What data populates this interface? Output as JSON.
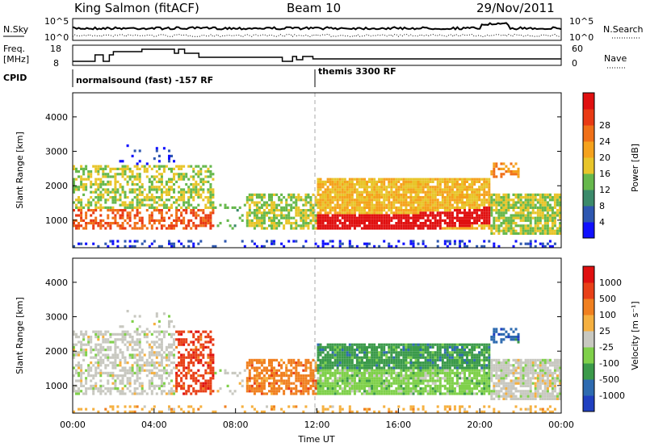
{
  "header": {
    "station": "King Salmon (fitACF)",
    "beam": "Beam 10",
    "date": "29/Nov/2011"
  },
  "summary_panels": {
    "nsky": {
      "label": "N.Sky",
      "right_label": "N.Search",
      "yticks_left": [
        "10^5",
        "10^0"
      ],
      "yticks_right": [
        "10^5",
        "10^0"
      ]
    },
    "freq": {
      "label_line1": "Freq.",
      "label_line2": "[MHz]",
      "yticks_left": [
        "18",
        "8"
      ],
      "right_label": "Nave",
      "yticks_right": [
        "60",
        "0"
      ]
    },
    "cpid": {
      "label": "CPID",
      "segments": [
        "normalsound (fast) -157 RF",
        "themis 3300 RF"
      ]
    }
  },
  "chart_data": [
    {
      "type": "heatmap",
      "title": "",
      "xlabel": "",
      "ylabel": "Slant Range [km]",
      "yticks": [
        1000,
        2000,
        3000,
        4000
      ],
      "ylim": [
        200,
        4700
      ],
      "xlim_hours": [
        0,
        24
      ],
      "colorbar": {
        "label": "Power [dB]",
        "ticks": [
          "4",
          "8",
          "12",
          "16",
          "20",
          "24",
          "28"
        ],
        "colors": [
          "#1010ff",
          "#2e57b0",
          "#3b8a6a",
          "#66b84c",
          "#e8c52a",
          "#f5a21d",
          "#f07018",
          "#e93a14",
          "#e01010"
        ]
      }
    },
    {
      "type": "heatmap",
      "title": "",
      "xlabel": "Time UT",
      "ylabel": "Slant Range [km]",
      "yticks": [
        1000,
        2000,
        3000,
        4000
      ],
      "ylim": [
        200,
        4700
      ],
      "xticks": [
        "00:00",
        "04:00",
        "08:00",
        "12:00",
        "16:00",
        "20:00",
        "00:00"
      ],
      "colorbar": {
        "label": "Velocity [m s⁻¹]",
        "ticks": [
          "1000",
          "500",
          "100",
          "25",
          "-25",
          "-100",
          "-500",
          "-1000"
        ],
        "colors": [
          "#2040c0",
          "#2e6bb0",
          "#3b9a4a",
          "#7fd04a",
          "#c8c8c0",
          "#f5b040",
          "#f08020",
          "#e84018",
          "#e01010"
        ]
      }
    }
  ]
}
